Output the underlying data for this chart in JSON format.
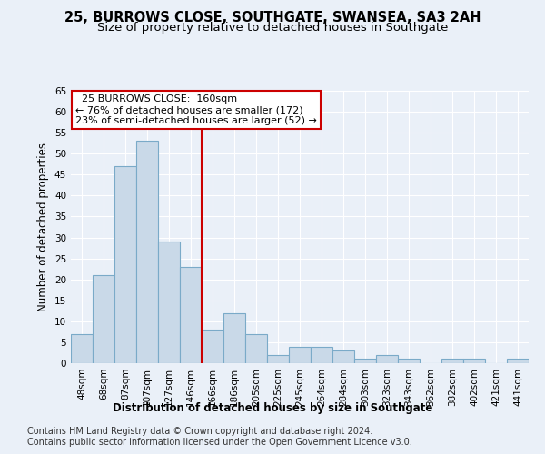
{
  "title": "25, BURROWS CLOSE, SOUTHGATE, SWANSEA, SA3 2AH",
  "subtitle": "Size of property relative to detached houses in Southgate",
  "xlabel": "Distribution of detached houses by size in Southgate",
  "ylabel": "Number of detached properties",
  "categories": [
    "48sqm",
    "68sqm",
    "87sqm",
    "107sqm",
    "127sqm",
    "146sqm",
    "166sqm",
    "186sqm",
    "205sqm",
    "225sqm",
    "245sqm",
    "264sqm",
    "284sqm",
    "303sqm",
    "323sqm",
    "343sqm",
    "362sqm",
    "382sqm",
    "402sqm",
    "421sqm",
    "441sqm"
  ],
  "values": [
    7,
    21,
    47,
    53,
    29,
    23,
    8,
    12,
    7,
    2,
    4,
    4,
    3,
    1,
    2,
    1,
    0,
    1,
    1,
    0,
    1
  ],
  "bar_color": "#c9d9e8",
  "bar_edge_color": "#7aaac8",
  "reference_line_x": 5.5,
  "reference_label": "  25 BURROWS CLOSE:  160sqm",
  "annotation_line1": "← 76% of detached houses are smaller (172)",
  "annotation_line2": "23% of semi-detached houses are larger (52) →",
  "annotation_box_color": "#ffffff",
  "annotation_box_edge": "#cc0000",
  "vline_color": "#cc0000",
  "ylim": [
    0,
    65
  ],
  "yticks": [
    0,
    5,
    10,
    15,
    20,
    25,
    30,
    35,
    40,
    45,
    50,
    55,
    60,
    65
  ],
  "background_color": "#eaf0f8",
  "plot_bg_color": "#eaf0f8",
  "footer1": "Contains HM Land Registry data © Crown copyright and database right 2024.",
  "footer2": "Contains public sector information licensed under the Open Government Licence v3.0.",
  "title_fontsize": 10.5,
  "subtitle_fontsize": 9.5,
  "xlabel_fontsize": 8.5,
  "ylabel_fontsize": 8.5,
  "tick_fontsize": 7.5,
  "footer_fontsize": 7.0,
  "annot_fontsize": 8.0
}
